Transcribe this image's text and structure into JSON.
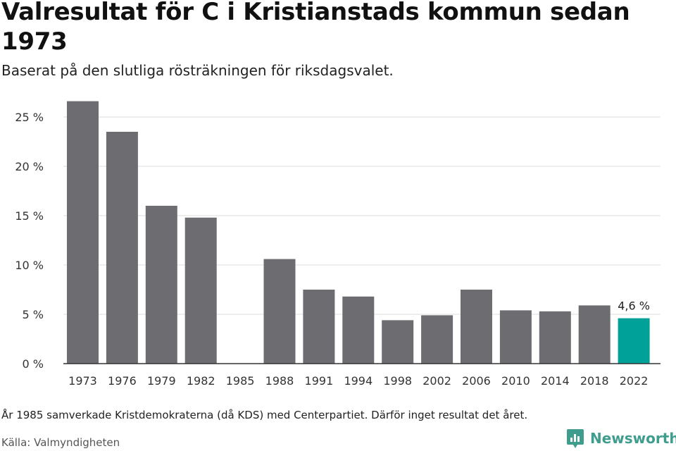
{
  "title": "Valresultat för C i Kristianstads kommun sedan 1973",
  "subtitle": "Baserat på den slutliga rösträkningen för riksdagsvalet.",
  "note": "År 1985 samverkade Kristdemokraterna (då KDS) med Centerpartiet. Därför inget resultat det året.",
  "source": "Källa: Valmyndigheten",
  "brand": {
    "name": "Newsworthy",
    "icon": "newsworthy-logo-icon",
    "color": "#3f9d8e"
  },
  "colors": {
    "bar": "#6d6c70",
    "highlight": "#00a199",
    "grid": "#dddddd",
    "axis": "#333333"
  },
  "chart_data": {
    "type": "bar",
    "categories": [
      "1973",
      "1976",
      "1979",
      "1982",
      "1985",
      "1988",
      "1991",
      "1994",
      "1998",
      "2002",
      "2006",
      "2010",
      "2014",
      "2018",
      "2022"
    ],
    "values": [
      26.6,
      23.5,
      16.0,
      14.8,
      null,
      10.6,
      7.5,
      6.8,
      4.4,
      4.9,
      7.5,
      5.4,
      5.3,
      5.9,
      4.6
    ],
    "ylim": [
      0,
      27
    ],
    "yticks": [
      0,
      5,
      10,
      15,
      20,
      25
    ],
    "ytick_labels": [
      "0 %",
      "5 %",
      "10 %",
      "15 %",
      "20 %",
      "25 %"
    ],
    "highlight_index": 14,
    "data_labels": [
      {
        "index": 14,
        "text": "4,6 %"
      }
    ],
    "grid": true,
    "legend": "none"
  }
}
